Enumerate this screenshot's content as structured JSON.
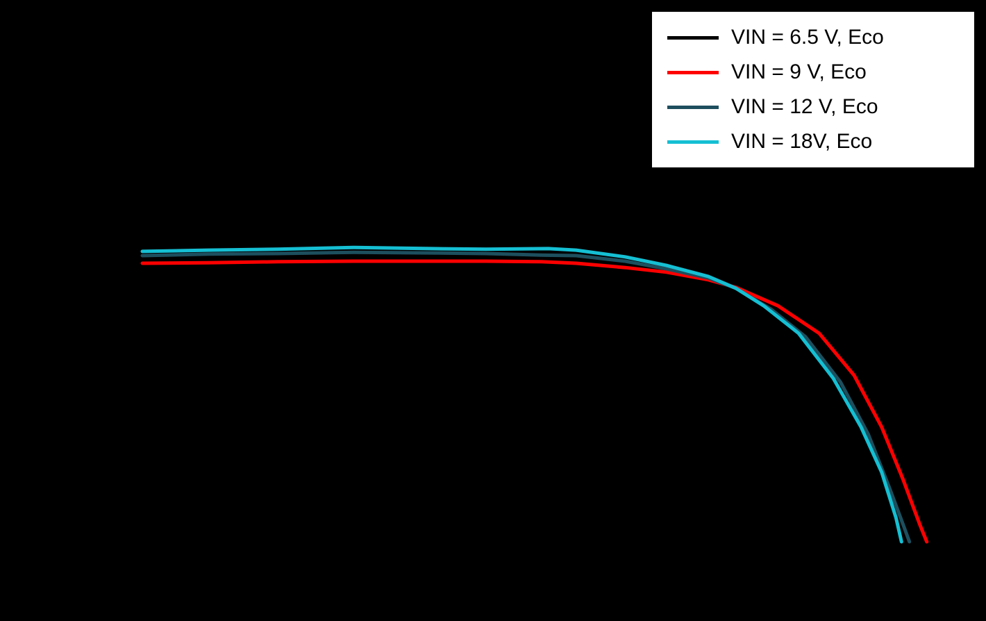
{
  "background_color": "#000000",
  "legend": {
    "background": "#ffffff",
    "border_color": "#000000",
    "position": "top-right"
  },
  "chart_data": {
    "type": "line",
    "title": "",
    "xlabel": "",
    "ylabel": "",
    "axes_labels_visible": false,
    "grid": false,
    "legend_position": "top-right",
    "x_range_normalized": [
      0,
      1
    ],
    "y_range_normalized": [
      0,
      1
    ],
    "series": [
      {
        "name": "VIN = 6.5 V, Eco",
        "color": "#000000",
        "points": [
          [
            0.0,
            0.93
          ],
          [
            0.171,
            0.934
          ],
          [
            0.268,
            0.936
          ],
          [
            0.434,
            0.934
          ],
          [
            0.548,
            0.93
          ],
          [
            0.61,
            0.916
          ],
          [
            0.715,
            0.875
          ],
          [
            0.75,
            0.85
          ],
          [
            0.803,
            0.79
          ],
          [
            0.855,
            0.7
          ],
          [
            0.899,
            0.56
          ],
          [
            0.934,
            0.395
          ],
          [
            0.961,
            0.22
          ],
          [
            0.982,
            0.075
          ],
          [
            0.99,
            0.02
          ]
        ]
      },
      {
        "name": "VIN = 9 V, Eco",
        "color": "#ff0000",
        "points": [
          [
            0.0,
            0.934
          ],
          [
            0.083,
            0.936
          ],
          [
            0.171,
            0.939
          ],
          [
            0.268,
            0.941
          ],
          [
            0.364,
            0.941
          ],
          [
            0.434,
            0.941
          ],
          [
            0.504,
            0.939
          ],
          [
            0.548,
            0.934
          ],
          [
            0.61,
            0.92
          ],
          [
            0.662,
            0.905
          ],
          [
            0.715,
            0.88
          ],
          [
            0.75,
            0.855
          ],
          [
            0.803,
            0.795
          ],
          [
            0.855,
            0.705
          ],
          [
            0.899,
            0.568
          ],
          [
            0.934,
            0.398
          ],
          [
            0.961,
            0.227
          ],
          [
            0.982,
            0.08
          ],
          [
            0.991,
            0.023
          ]
        ]
      },
      {
        "name": "VIN = 12 V, Eco",
        "color": "#1d4f5e",
        "points": [
          [
            0.0,
            0.959
          ],
          [
            0.083,
            0.964
          ],
          [
            0.171,
            0.966
          ],
          [
            0.268,
            0.97
          ],
          [
            0.364,
            0.968
          ],
          [
            0.434,
            0.966
          ],
          [
            0.504,
            0.961
          ],
          [
            0.548,
            0.959
          ],
          [
            0.61,
            0.941
          ],
          [
            0.662,
            0.916
          ],
          [
            0.715,
            0.886
          ],
          [
            0.75,
            0.852
          ],
          [
            0.794,
            0.784
          ],
          [
            0.838,
            0.693
          ],
          [
            0.882,
            0.545
          ],
          [
            0.917,
            0.375
          ],
          [
            0.943,
            0.205
          ],
          [
            0.961,
            0.08
          ],
          [
            0.969,
            0.023
          ]
        ]
      },
      {
        "name": "VIN = 18V, Eco",
        "color": "#15bfd3",
        "points": [
          [
            0.0,
            0.973
          ],
          [
            0.083,
            0.977
          ],
          [
            0.171,
            0.98
          ],
          [
            0.268,
            0.986
          ],
          [
            0.364,
            0.982
          ],
          [
            0.434,
            0.98
          ],
          [
            0.513,
            0.982
          ],
          [
            0.548,
            0.977
          ],
          [
            0.61,
            0.955
          ],
          [
            0.662,
            0.927
          ],
          [
            0.715,
            0.891
          ],
          [
            0.75,
            0.852
          ],
          [
            0.785,
            0.795
          ],
          [
            0.829,
            0.705
          ],
          [
            0.873,
            0.557
          ],
          [
            0.908,
            0.398
          ],
          [
            0.934,
            0.25
          ],
          [
            0.952,
            0.102
          ],
          [
            0.959,
            0.023
          ]
        ]
      }
    ]
  }
}
